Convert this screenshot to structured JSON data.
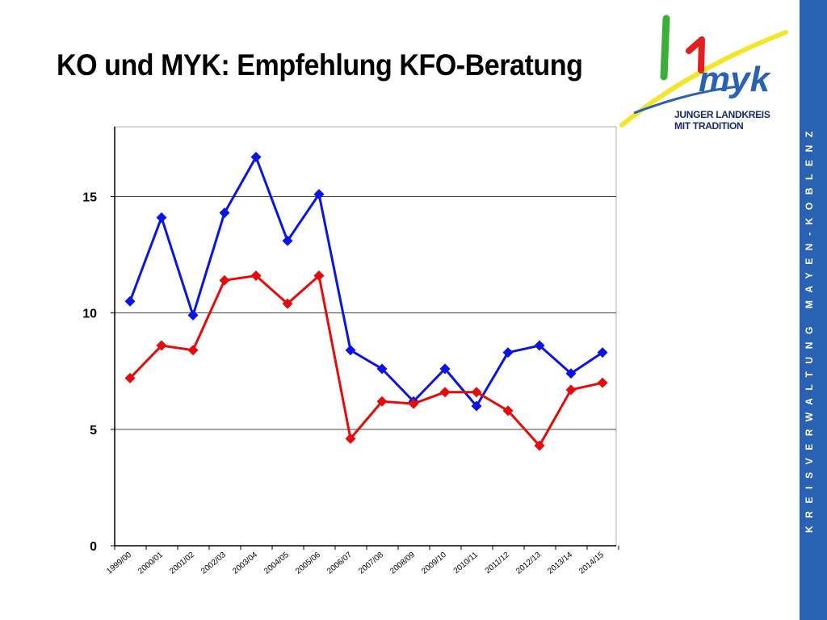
{
  "slide": {
    "title": "KO und MYK: Empfehlung KFO-Beratung",
    "side_text": "KREISVERWALTUNG MAYEN-KOBLENZ",
    "logo": {
      "text_line1": "JUNGER LANDKREIS",
      "text_line2": "MIT TRADITION",
      "brand": "myk",
      "colors": {
        "green": "#3cae3a",
        "red": "#e02020",
        "yellow": "#f2e52a",
        "blue": "#2a62b3"
      }
    },
    "side_band_color": "#2a62b3"
  },
  "chart_data": {
    "type": "line",
    "categories": [
      "1999/00",
      "2000/01",
      "2001/02",
      "2002/03",
      "2003/04",
      "2004/05",
      "2005/06",
      "2006/07",
      "2007/08",
      "2008/09",
      "2009/10",
      "2010/11",
      "2011/12",
      "2012/13",
      "2013/14",
      "2014/15"
    ],
    "series": [
      {
        "color": "#0a14e6",
        "marker": "diamond",
        "values": [
          10.5,
          14.1,
          9.9,
          14.3,
          16.7,
          13.1,
          15.1,
          8.4,
          7.6,
          6.2,
          7.6,
          6.0,
          8.3,
          8.6,
          7.4,
          8.3
        ]
      },
      {
        "color": "#e60a0a",
        "marker": "diamond",
        "values": [
          7.2,
          8.6,
          8.4,
          11.4,
          11.6,
          10.4,
          11.6,
          4.6,
          6.2,
          6.1,
          6.6,
          6.6,
          5.8,
          4.3,
          6.7,
          7.0
        ]
      }
    ],
    "y_ticks": [
      "0",
      "5",
      "10",
      "15"
    ],
    "ylim": [
      0,
      18
    ],
    "grid": true,
    "title": "",
    "xlabel": "",
    "ylabel": ""
  }
}
